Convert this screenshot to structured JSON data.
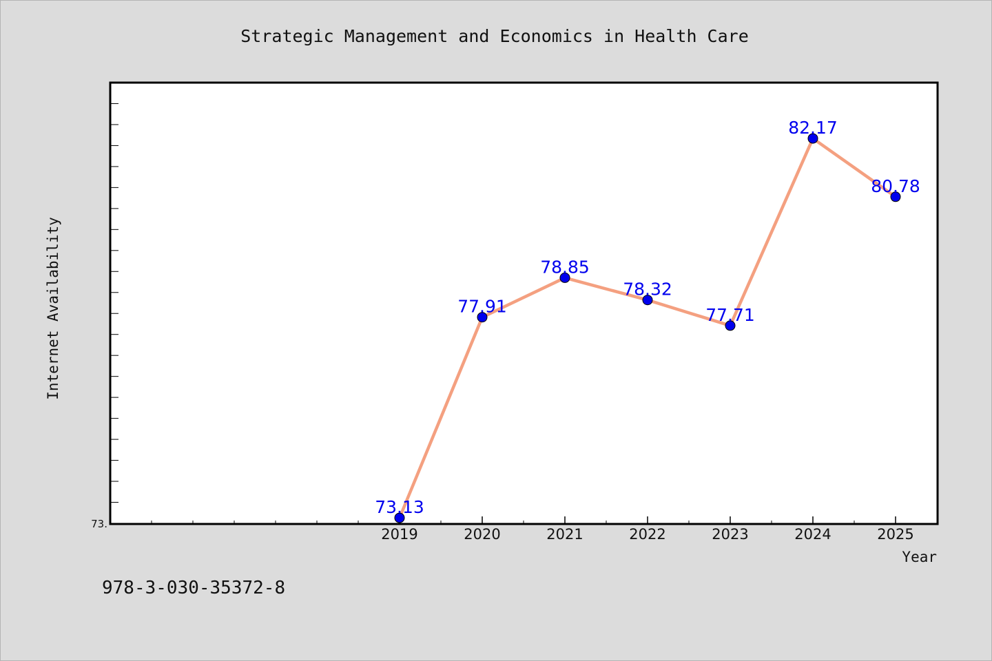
{
  "chart_data": {
    "type": "line",
    "title": "Strategic Management and Economics in Health Care",
    "xlabel": "Year",
    "ylabel": "Internet Availability",
    "x": [
      "2019",
      "2020",
      "2021",
      "2022",
      "2023",
      "2024",
      "2025"
    ],
    "series": [
      {
        "values": [
          73.13,
          77.91,
          78.85,
          78.32,
          77.71,
          82.17,
          80.78
        ]
      }
    ],
    "data_labels": [
      "73.13",
      "77.91",
      "78.85",
      "78.32",
      "77.71",
      "82.17",
      "80.78"
    ],
    "ytick_labels": [
      "73."
    ],
    "ylim": [
      73.0,
      83.5
    ],
    "xlim": [
      2015.5,
      2025.5
    ],
    "grid": false,
    "line_color": "#f4a080",
    "marker_color": "#0000ee",
    "label_color": "#0000ee"
  },
  "footer_text": "978-3-030-35372-8"
}
